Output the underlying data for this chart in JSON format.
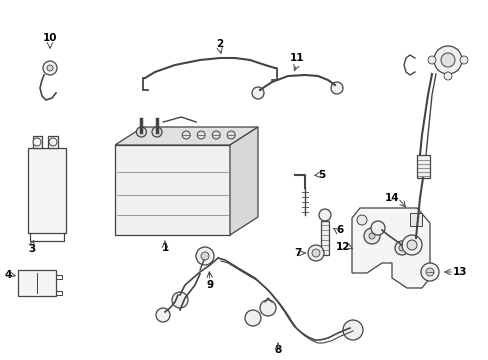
{
  "bg_color": "#ffffff",
  "line_color": "#444444",
  "figsize": [
    4.89,
    3.6
  ],
  "dpi": 100,
  "xlim": [
    0,
    489
  ],
  "ylim": [
    0,
    360
  ]
}
